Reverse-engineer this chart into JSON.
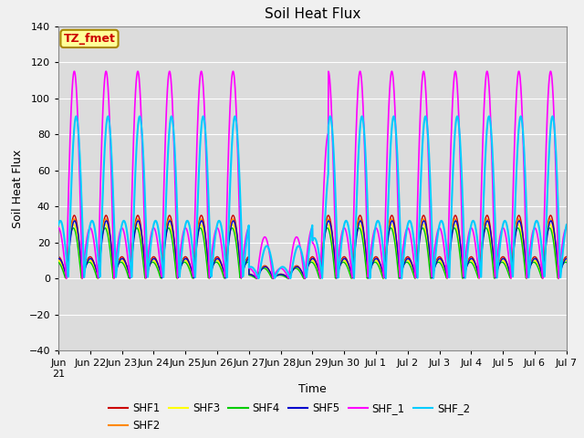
{
  "title": "Soil Heat Flux",
  "xlabel": "Time",
  "ylabel": "Soil Heat Flux",
  "ylim": [
    -40,
    140
  ],
  "yticks": [
    -40,
    -20,
    0,
    20,
    40,
    60,
    80,
    100,
    120,
    140
  ],
  "series_names": [
    "SHF1",
    "SHF2",
    "SHF3",
    "SHF4",
    "SHF5",
    "SHF_1",
    "SHF_2"
  ],
  "series_colors": [
    "#cc0000",
    "#ff8800",
    "#ffff00",
    "#00cc00",
    "#0000cc",
    "#ff00ff",
    "#00ccff"
  ],
  "series_linewidths": [
    1.0,
    1.0,
    1.0,
    1.0,
    1.0,
    1.2,
    1.5
  ],
  "annotation_text": "TZ_fmet",
  "annotation_color": "#cc0000",
  "annotation_bg": "#ffff99",
  "annotation_border": "#aa8800",
  "n_days": 16,
  "points_per_day": 144,
  "background_color": "#dcdcdc",
  "grid_color": "#ffffff",
  "fig_bg_color": "#f0f0f0",
  "tick_label_fontsize": 8,
  "axis_label_fontsize": 9,
  "title_fontsize": 11
}
